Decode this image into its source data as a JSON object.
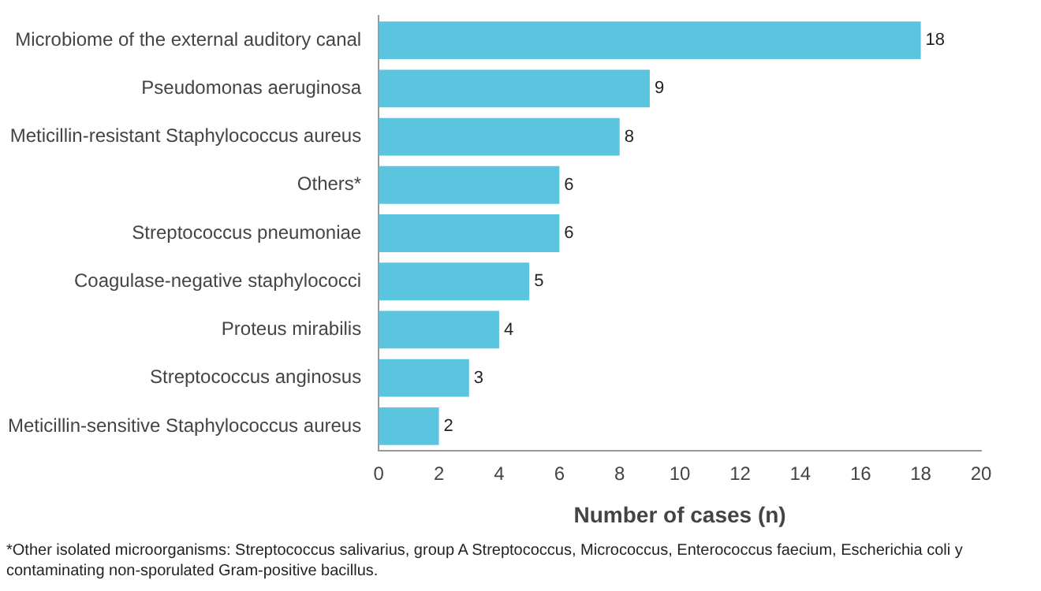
{
  "chart_data": {
    "type": "bar",
    "orientation": "horizontal",
    "xlabel": "Number of cases (n)",
    "categories": [
      "Microbiome of the external auditory canal",
      "Pseudomonas aeruginosa",
      "Meticillin-resistant Staphylococcus aureus",
      "Others*",
      "Streptococcus pneumoniae",
      "Coagulase-negative staphylococci",
      "Proteus mirabilis",
      "Streptococcus anginosus",
      "Meticillin-sensitive Staphylococcus aureus"
    ],
    "values": [
      18,
      9,
      8,
      6,
      6,
      5,
      4,
      3,
      2
    ],
    "color": "#5bc4de",
    "xlim": [
      0,
      20
    ],
    "xticks": [
      0,
      2,
      4,
      6,
      8,
      10,
      12,
      14,
      16,
      18,
      20
    ],
    "grid": false,
    "legend": false,
    "data_labels": true,
    "annotations": [
      "*Other isolated microorganisms: Streptococcus salivarius, group A Streptococcus, Micrococcus, Enterococcus faecium, Escherichia coli y contaminating non-sporulated Gram-positive bacillus."
    ]
  }
}
